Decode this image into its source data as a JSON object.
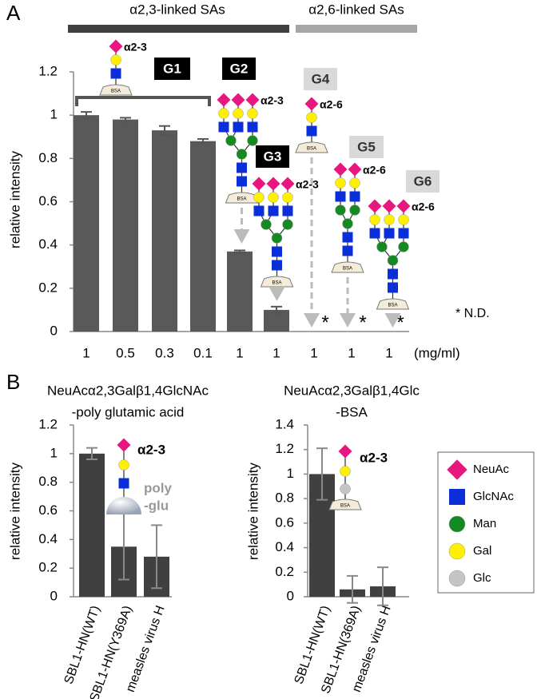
{
  "chart_data": [
    {
      "type": "bar",
      "panel_label": "A",
      "ylabel": "relative intensity",
      "xlabel": "(mg/ml)",
      "categories": [
        "1",
        "0.5",
        "0.3",
        "0.1",
        "1",
        "1",
        "1",
        "1",
        "1"
      ],
      "values": [
        1,
        0.98,
        0.93,
        0.88,
        0.37,
        0.1,
        null,
        null,
        null
      ],
      "errors": [
        0.015,
        0.008,
        0.02,
        0.01,
        0.005,
        0.015,
        null,
        null,
        null
      ],
      "value_labels": [
        null,
        null,
        null,
        null,
        null,
        null,
        "*",
        "*",
        "*"
      ],
      "color": "#595959",
      "ylim": [
        0,
        1.2
      ],
      "yticks": [
        0,
        0.2,
        0.4,
        0.6,
        0.8,
        1,
        1.2
      ],
      "groups": [
        {
          "name": "α2,3-linked SAs",
          "color": "#404040"
        },
        {
          "name": "α2,6-linked SAs",
          "color": "#a6a6a6"
        }
      ],
      "glycans": [
        {
          "name": "G1",
          "linkage": "α2-3",
          "box_color": "#000000"
        },
        {
          "name": "G2",
          "linkage": "α2-3",
          "box_color": "#000000"
        },
        {
          "name": "G3",
          "linkage": "α2-3",
          "box_color": "#000000"
        },
        {
          "name": "G4",
          "linkage": "α2-6",
          "box_color": "#d9d9d9"
        },
        {
          "name": "G5",
          "linkage": "α2-6",
          "box_color": "#d9d9d9"
        },
        {
          "name": "G6",
          "linkage": "α2-6",
          "box_color": "#d9d9d9"
        }
      ],
      "carrier": "BSA",
      "annotation": "* N.D."
    },
    {
      "type": "bar",
      "panel_label": "B",
      "title": [
        "NeuAcα2,3Galβ1,4GlcNAc",
        "-poly glutamic acid"
      ],
      "ylabel": "relative intensity",
      "categories": [
        "SBL1-HN(WT)",
        "SBL1-HN(Y369A)",
        "measles virus H"
      ],
      "values": [
        1,
        0.35,
        0.28
      ],
      "errors": [
        0.04,
        0.23,
        0.22
      ],
      "color": "#404040",
      "ylim": [
        0,
        1.2
      ],
      "yticks": [
        0,
        0.2,
        0.4,
        0.6,
        0.8,
        1,
        1.2
      ],
      "glycan_linkage": "α2-3",
      "carrier": [
        "poly",
        "-glu"
      ]
    },
    {
      "type": "bar",
      "title": [
        "NeuAcα2,3Galβ1,4Glc",
        "-BSA"
      ],
      "ylabel": "relative intensity",
      "categories": [
        "SBL1-HN(WT)",
        "SBL1-HN(369A)",
        "measles virus H"
      ],
      "values": [
        1,
        0.06,
        0.085
      ],
      "errors": [
        0.21,
        0.11,
        0.155
      ],
      "color": "#404040",
      "ylim": [
        0,
        1.4
      ],
      "yticks": [
        0,
        0.2,
        0.4,
        0.6,
        0.8,
        1,
        1.2,
        1.4
      ],
      "glycan_linkage": "α2-3",
      "carrier": "BSA",
      "legend": [
        {
          "name": "NeuAc",
          "color": "#e8177f",
          "shape": "diamond"
        },
        {
          "name": "GlcNAc",
          "color": "#0a2fd8",
          "shape": "square"
        },
        {
          "name": "Man",
          "color": "#168a22",
          "shape": "circle"
        },
        {
          "name": "Gal",
          "color": "#fff000",
          "shape": "circle"
        },
        {
          "name": "Glc",
          "color": "#c4c4c4",
          "shape": "circle"
        }
      ]
    }
  ]
}
